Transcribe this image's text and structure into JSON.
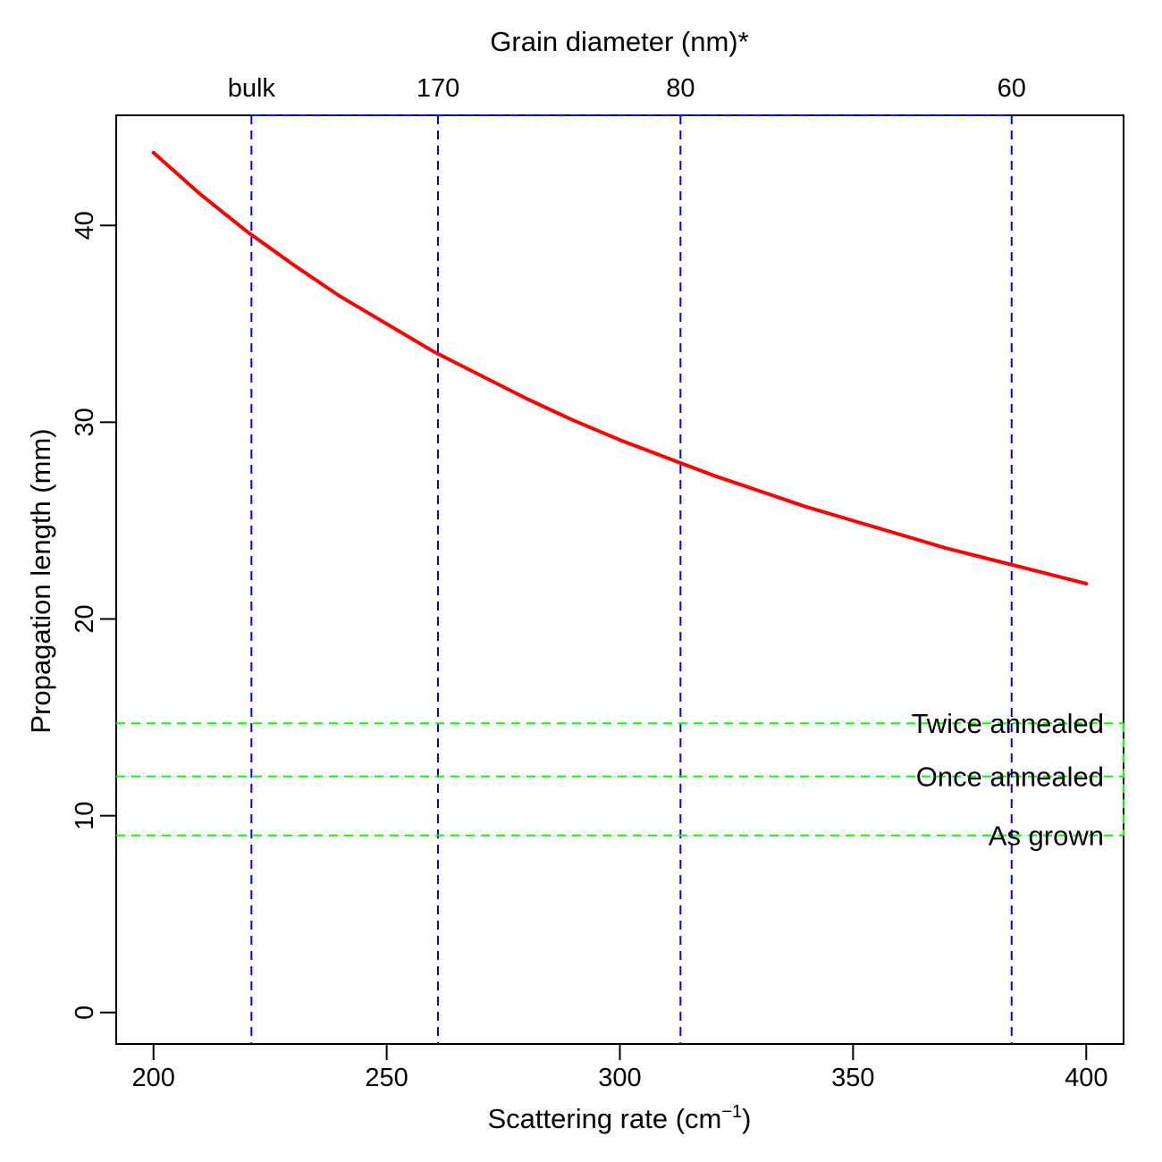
{
  "chart_data": {
    "type": "line",
    "xlabel": "Scattering rate (cm",
    "xlabel_sup": "−1",
    "xlabel_end": ")",
    "ylabel": "Propagation length (mm)",
    "top_axis_title": "Grain diameter (nm)*",
    "xlim": [
      192,
      408
    ],
    "ylim": [
      -1.6,
      45.6
    ],
    "x_ticks": [
      200,
      250,
      300,
      350,
      400
    ],
    "y_ticks": [
      0,
      10,
      20,
      30,
      40
    ],
    "grid": false,
    "series": [
      {
        "color": "#ff0000",
        "x": [
          200,
          210,
          220,
          230,
          240,
          250,
          260,
          270,
          280,
          290,
          300,
          310,
          320,
          330,
          340,
          350,
          360,
          370,
          380,
          390,
          400
        ],
        "y": [
          43.7,
          41.6,
          39.7,
          38.0,
          36.4,
          35.0,
          33.6,
          32.4,
          31.2,
          30.1,
          29.1,
          28.2,
          27.3,
          26.5,
          25.7,
          25.0,
          24.3,
          23.6,
          23.0,
          22.4,
          21.8
        ]
      }
    ],
    "grain_lines": {
      "color": "#0000ff",
      "items": [
        {
          "label": "bulk",
          "x": 221
        },
        {
          "label": "170",
          "x": 261
        },
        {
          "label": "80",
          "x": 313
        },
        {
          "label": "60",
          "x": 384
        }
      ]
    },
    "annealing_lines": {
      "color": "#00ff00",
      "items": [
        {
          "label": "Twice annealed",
          "y": 14.7
        },
        {
          "label": "Once annealed",
          "y": 12.0
        },
        {
          "label": "As grown",
          "y": 9.0
        }
      ]
    }
  }
}
